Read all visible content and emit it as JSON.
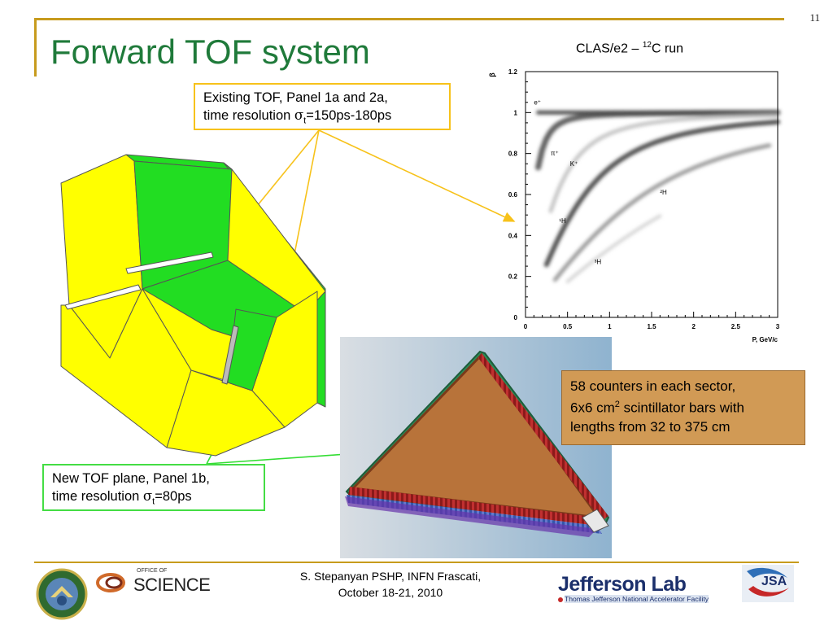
{
  "slide_number": "11",
  "title": "Forward TOF system",
  "existing_box": {
    "line1": "Existing TOF, Panel 1a and 2a,",
    "line2_prefix": "time resolution ",
    "sigma": "σ",
    "sub": "t",
    "line2_suffix": "=150ps-180ps"
  },
  "new_box": {
    "line1": "New TOF plane, Panel 1b,",
    "line2_prefix": "time resolution ",
    "sigma": "σ",
    "sub": "t",
    "line2_suffix": "=80ps"
  },
  "counters_box": {
    "line1": "58 counters in each sector,",
    "line2_prefix": "6x6 cm",
    "sup": "2",
    "line2_suffix": " scintillator bars with",
    "line3": "lengths from 32 to 375 cm"
  },
  "chart_title": {
    "prefix": "CLAS/e2 – ",
    "sup": "12",
    "suffix": "C run"
  },
  "chart_data": {
    "type": "scatter",
    "title": "CLAS/e2 – 12C run",
    "xlabel": "P, GeV/c",
    "ylabel": "β",
    "xlim": [
      0,
      3
    ],
    "ylim": [
      0,
      1.2
    ],
    "x_ticks": [
      "0",
      "0.5",
      "1",
      "1.5",
      "2",
      "2.5",
      "3"
    ],
    "y_ticks": [
      "0",
      "0.2",
      "0.4",
      "0.6",
      "0.8",
      "1",
      "1.2"
    ],
    "x_tick_values": [
      0,
      0.5,
      1,
      1.5,
      2,
      2.5,
      3
    ],
    "y_tick_values": [
      0,
      0.2,
      0.4,
      0.6,
      0.8,
      1,
      1.2
    ],
    "series": [
      {
        "name": "e+",
        "label": "e⁺",
        "mass": 0.0005,
        "x_range": [
          0.15,
          3.0
        ],
        "color": "#333333",
        "width": 5
      },
      {
        "name": "π+",
        "label": "π⁺",
        "mass": 0.1396,
        "x_range": [
          0.15,
          3.0
        ],
        "color": "#444444",
        "width": 7
      },
      {
        "name": "K+",
        "label": "K⁺",
        "mass": 0.4937,
        "x_range": [
          0.3,
          3.0
        ],
        "color": "#bbbbbb",
        "width": 5
      },
      {
        "name": "1H",
        "label": "¹H",
        "mass": 0.9383,
        "x_range": [
          0.25,
          3.0
        ],
        "color": "#333333",
        "width": 6
      },
      {
        "name": "2H",
        "label": "²H",
        "mass": 1.8756,
        "x_range": [
          0.35,
          2.9
        ],
        "color": "#888888",
        "width": 5
      },
      {
        "name": "3H",
        "label": "³H",
        "mass": 2.8089,
        "x_range": [
          0.5,
          1.6
        ],
        "color": "#cccccc",
        "width": 4
      }
    ],
    "annotations": [
      {
        "text": "e⁺",
        "x": 0.1,
        "y": 1.04
      },
      {
        "text": "π⁺",
        "x": 0.3,
        "y": 0.79
      },
      {
        "text": "K⁺",
        "x": 0.53,
        "y": 0.74
      },
      {
        "text": "²H",
        "x": 1.6,
        "y": 0.6
      },
      {
        "text": "¹H",
        "x": 0.4,
        "y": 0.46
      },
      {
        "text": "³H",
        "x": 0.82,
        "y": 0.26
      }
    ],
    "grid": false,
    "legend": "none"
  },
  "footer": {
    "line1": "S. Stepanyan PSHP, INFN Frascati,",
    "line2": "October 18-21, 2010"
  },
  "logos": {
    "science_small": "OFFICE OF",
    "science_big": "SCIENCE",
    "jlab_main": "Jefferson Lab",
    "jlab_sub": "Thomas Jefferson National Accelerator Facility",
    "jsa": "JSA"
  },
  "colors": {
    "title": "#1f7a3a",
    "accent_rule": "#c79b1d",
    "existing_border": "#f7c21a",
    "new_border": "#44dd44",
    "counters_fill": "#d19a55",
    "panel_yellow": "#ffff00",
    "panel_green": "#22dd22"
  }
}
